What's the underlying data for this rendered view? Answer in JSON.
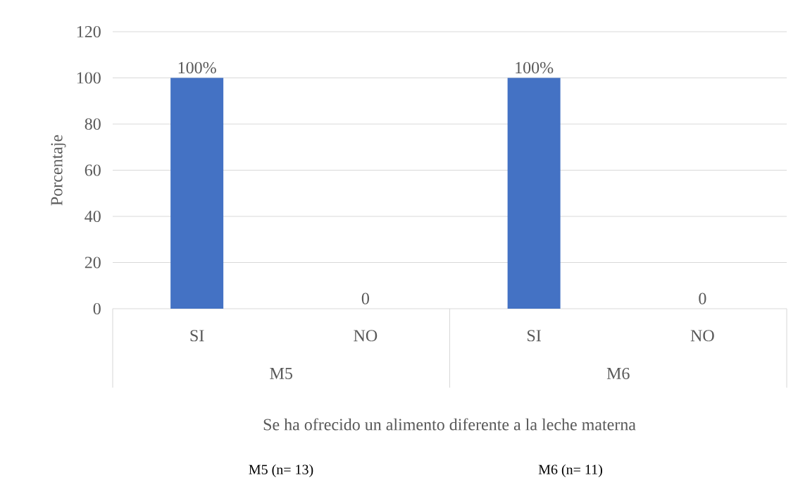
{
  "chart_data": {
    "type": "bar",
    "xlabel": "Se ha ofrecido un alimento diferente a la leche materna",
    "ylabel": "Porcentaje",
    "categories": [
      "SI",
      "NO",
      "SI",
      "NO"
    ],
    "values": [
      100,
      0,
      100,
      0
    ],
    "value_labels": [
      "100%",
      "0",
      "100%",
      "0"
    ],
    "color": "#4472c4",
    "ylim": [
      0,
      120
    ],
    "yticks": [
      0,
      20,
      40,
      60,
      80,
      100,
      120
    ],
    "grid": "y",
    "annotations": [
      "M5",
      "M6",
      "M5 (n= 13)",
      "M6 (n= 11)"
    ]
  }
}
